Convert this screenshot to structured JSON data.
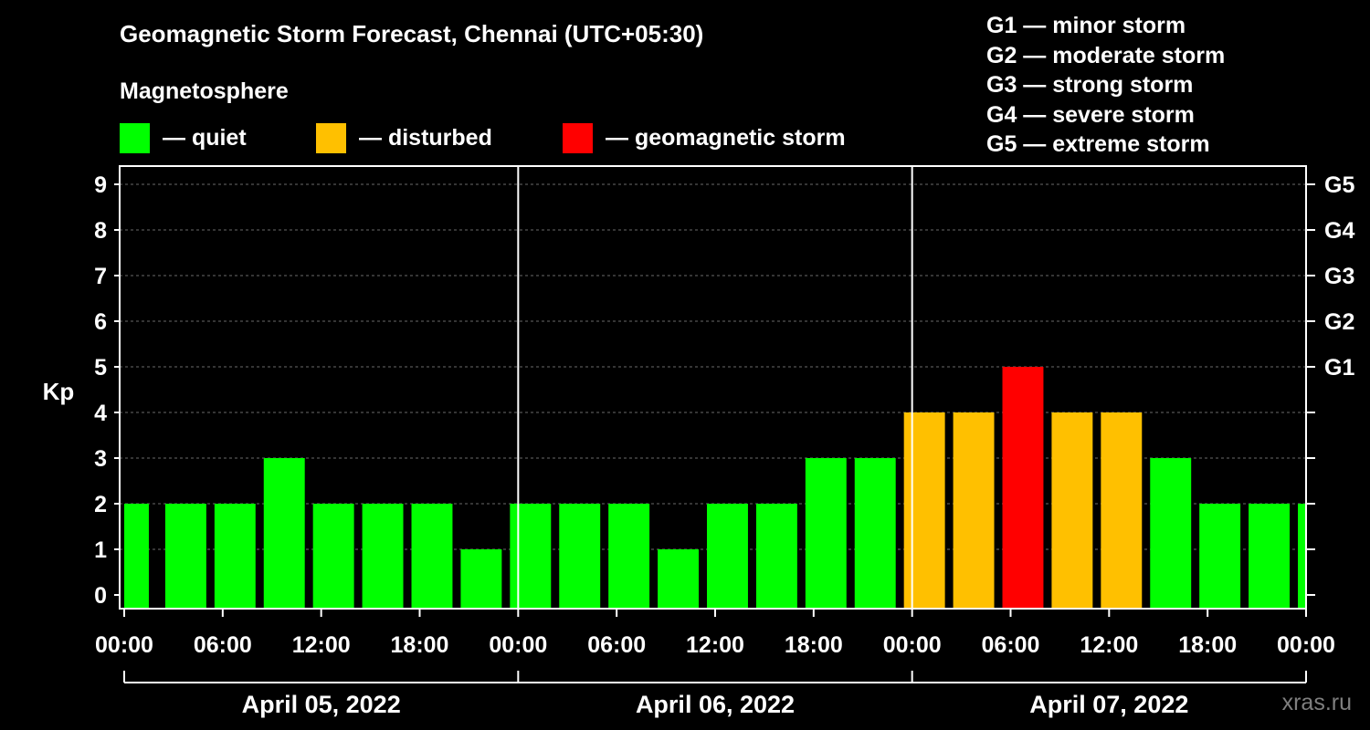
{
  "title": "Geomagnetic Storm Forecast, Chennai (UTC+05:30)",
  "magnetosphere": {
    "title": "Magnetosphere",
    "items": [
      {
        "label": "— quiet",
        "color": "#00ff00"
      },
      {
        "label": "— disturbed",
        "color": "#ffc000"
      },
      {
        "label": "— geomagnetic storm",
        "color": "#ff0000"
      }
    ]
  },
  "storm_scale": [
    "G1 — minor storm",
    "G2 — moderate storm",
    "G3 — strong storm",
    "G4 — severe storm",
    "G5 — extreme storm"
  ],
  "watermark": "xras.ru",
  "chart_data": {
    "type": "bar",
    "ylabel": "Kp",
    "ylim": [
      0,
      9
    ],
    "y_ticks": [
      0,
      1,
      2,
      3,
      4,
      5,
      6,
      7,
      8,
      9
    ],
    "right_axis_ticks": [
      {
        "kp": 5,
        "label": "G1"
      },
      {
        "kp": 6,
        "label": "G2"
      },
      {
        "kp": 7,
        "label": "G3"
      },
      {
        "kp": 8,
        "label": "G4"
      },
      {
        "kp": 9,
        "label": "G5"
      }
    ],
    "x_tick_labels": [
      "00:00",
      "06:00",
      "12:00",
      "18:00",
      "00:00",
      "06:00",
      "12:00",
      "18:00",
      "00:00",
      "06:00",
      "12:00",
      "18:00",
      "00:00"
    ],
    "days": [
      "April 05, 2022",
      "April 06, 2022",
      "April 07, 2022"
    ],
    "interval_hours": 3,
    "bar_start_hours": [
      0,
      2.5,
      5.5,
      8.5,
      11.5,
      14.5,
      17.5,
      20.5,
      23.5,
      26.5,
      29.5,
      32.5,
      35.5,
      38.5,
      41.5,
      44.5,
      47.5,
      50.5,
      53.5,
      56.5,
      59.5,
      62.5,
      65.5,
      68.5,
      71.5
    ],
    "bar_end_hours": [
      1.5,
      5,
      8,
      11,
      14,
      17,
      20,
      23,
      26,
      29,
      32,
      35,
      38,
      41,
      44,
      47,
      50,
      53,
      56,
      59,
      62,
      65,
      68,
      71,
      72
    ],
    "values": [
      2,
      2,
      2,
      3,
      2,
      2,
      2,
      1,
      2,
      2,
      2,
      1,
      2,
      2,
      3,
      3,
      4,
      4,
      5,
      4,
      4,
      3,
      2,
      2,
      2
    ],
    "levels": [
      "quiet",
      "quiet",
      "quiet",
      "quiet",
      "quiet",
      "quiet",
      "quiet",
      "quiet",
      "quiet",
      "quiet",
      "quiet",
      "quiet",
      "quiet",
      "quiet",
      "quiet",
      "quiet",
      "disturbed",
      "disturbed",
      "storm",
      "disturbed",
      "disturbed",
      "quiet",
      "quiet",
      "quiet",
      "quiet"
    ],
    "level_colors": {
      "quiet": "#00ff00",
      "disturbed": "#ffc000",
      "storm": "#ff0000"
    },
    "grid": true
  }
}
